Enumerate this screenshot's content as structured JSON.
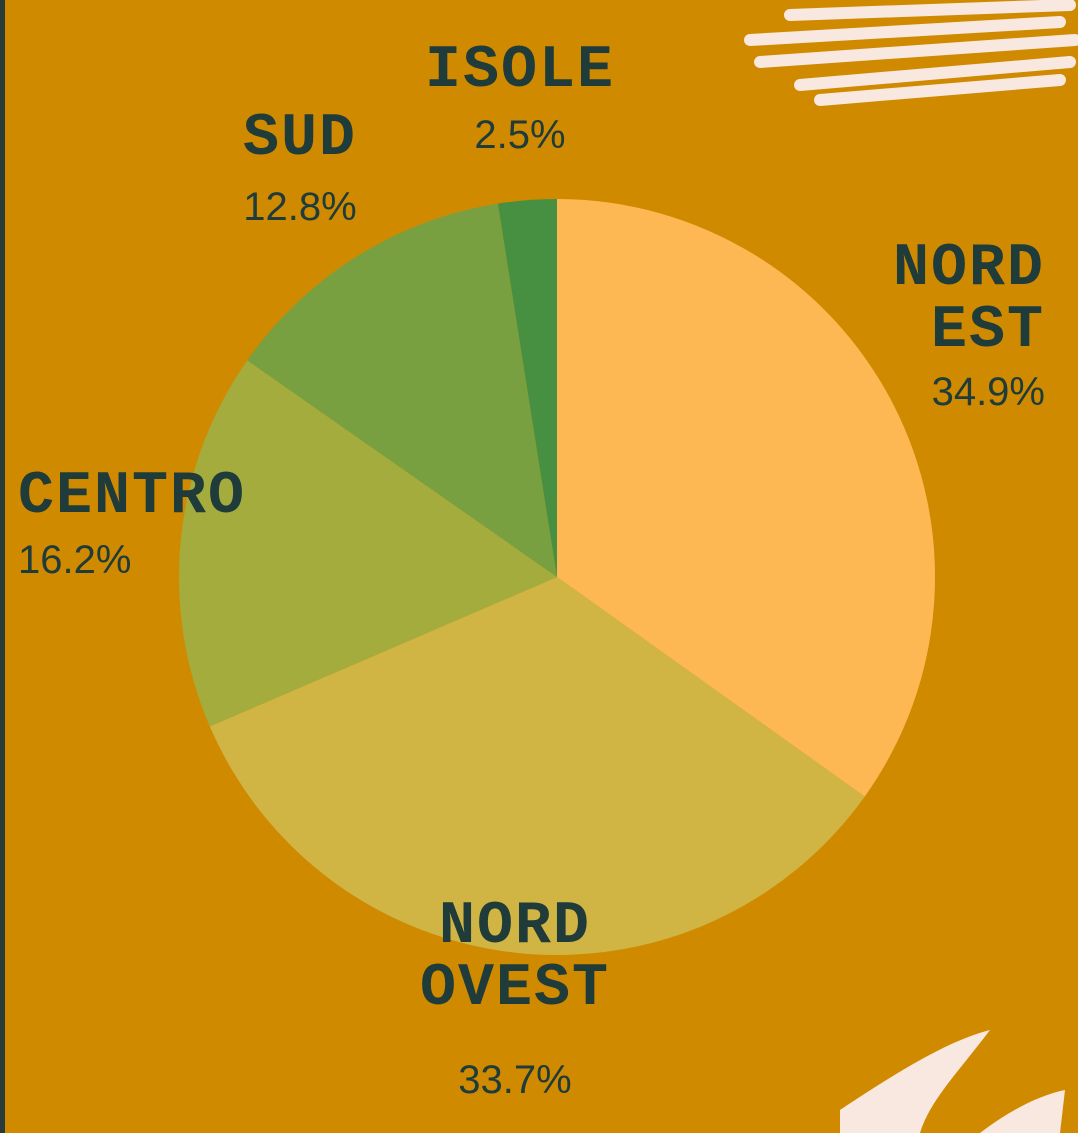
{
  "chart_data": {
    "type": "pie",
    "categories": [
      "NORD\nEST",
      "NORD\nOVEST",
      "CENTRO",
      "SUD",
      "ISOLE"
    ],
    "values": [
      34.9,
      33.7,
      16.2,
      12.8,
      2.5
    ],
    "value_labels": [
      "34.9%",
      "33.7%",
      "16.2%",
      "12.8%",
      "2.5%"
    ],
    "colors": [
      "#fdb853",
      "#d0b444",
      "#a3ac3c",
      "#78a040",
      "#479041"
    ]
  }
}
